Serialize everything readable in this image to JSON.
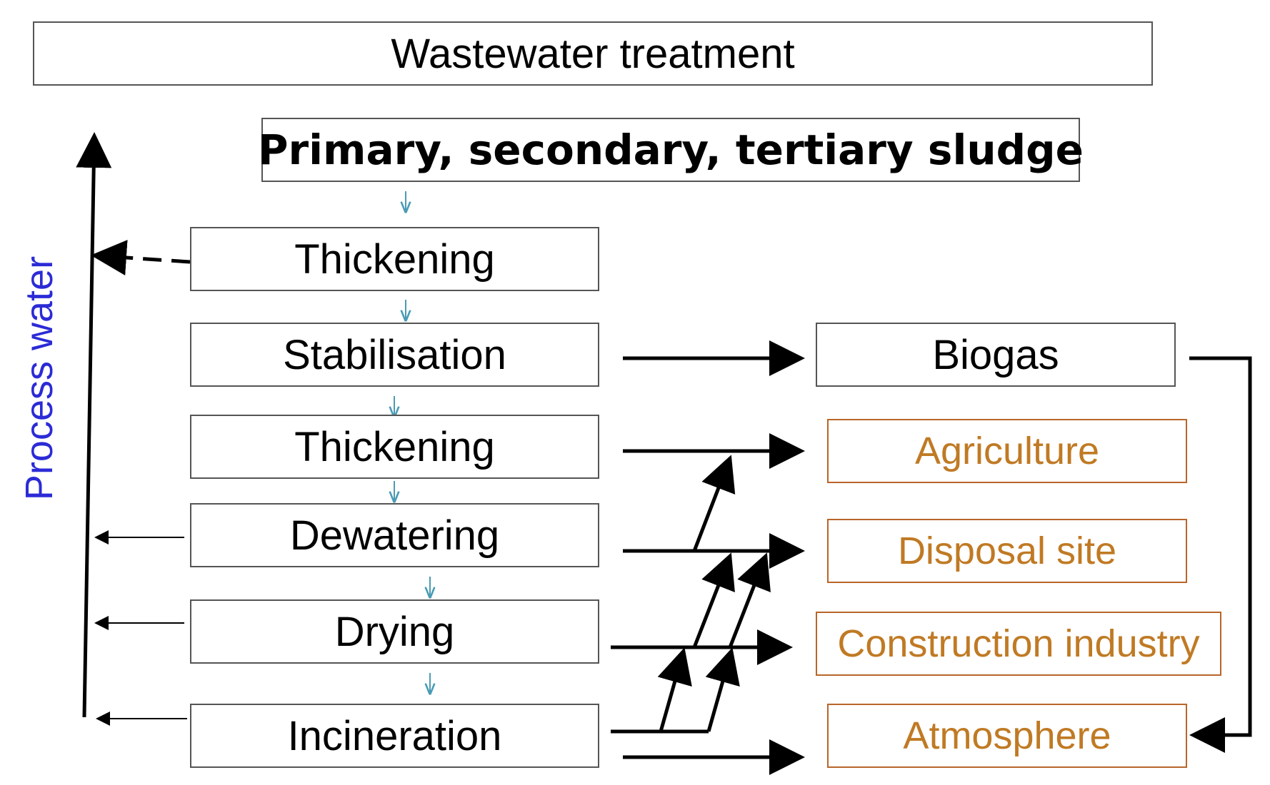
{
  "title": "Wastewater treatment",
  "source": "Primary, secondary, tertiary sludge",
  "side_label": "Process water",
  "steps": [
    "Thickening",
    "Stabilisation",
    "Thickening",
    "Dewatering",
    "Drying",
    "Incineration"
  ],
  "outputs": [
    "Biogas",
    "Agriculture",
    "Disposal site",
    "Construction industry",
    "Atmosphere"
  ],
  "colors": {
    "box_border": "#555555",
    "text": "#000000",
    "destination_text": "#c07a24",
    "destination_border": "#b8662a",
    "flow_arrow": "#4a9bb5",
    "side_label": "#2b2bd6"
  }
}
